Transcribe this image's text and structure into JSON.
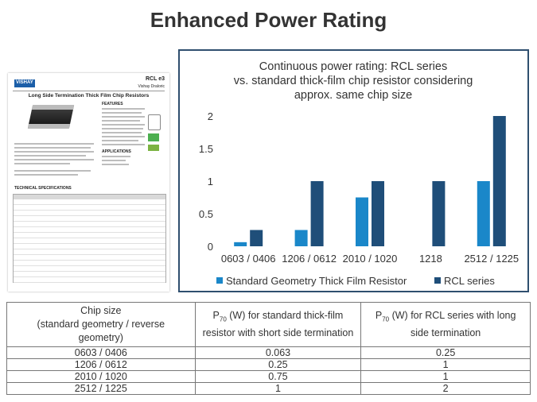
{
  "slide": {
    "title": "Enhanced Power Rating"
  },
  "thumbnail": {
    "brand": "VISHAY",
    "series": "RCL e3",
    "company": "Vishay Draloric",
    "doc_title": "Long Side Termination Thick Film Chip Resistors",
    "features_heading": "FEATURES",
    "applications_heading": "APPLICATIONS",
    "table_heading": "TECHNICAL SPECIFICATIONS"
  },
  "chart_data": {
    "type": "bar",
    "title": "Continuous power rating: RCL series vs. standard thick-film chip resistor considering approx. same chip size",
    "title_lines": [
      "Continuous power rating: RCL series",
      "vs. standard thick-film chip resistor considering",
      "approx. same chip size"
    ],
    "categories": [
      "0603 / 0406",
      "1206 / 0612",
      "2010 / 1020",
      "1218",
      "2512 / 1225"
    ],
    "series": [
      {
        "name": "Standard Geometry Thick Film Resistor",
        "color": "#1a87c9",
        "values": [
          0.063,
          0.25,
          0.75,
          null,
          1
        ]
      },
      {
        "name": "RCL series",
        "color": "#1f4e79",
        "values": [
          0.25,
          1,
          1,
          1,
          2
        ]
      }
    ],
    "ylim": [
      0,
      2
    ],
    "yticks": [
      "0",
      "0.5",
      "1",
      "1.5",
      "2"
    ],
    "grid": false,
    "legend": "bottom",
    "xlabel": "",
    "ylabel": ""
  },
  "table": {
    "headers": [
      "Chip size (standard geometry / reverse geometry)",
      "P70 (W) for standard thick-film resistor with short side termination",
      "P70 (W) for RCL series with long side termination"
    ],
    "rows": [
      [
        "0603 / 0406",
        "0.063",
        "0.25"
      ],
      [
        "1206 / 0612",
        "0.25",
        "1"
      ],
      [
        "2010 / 1020",
        "0.75",
        "1"
      ],
      [
        "2512 / 1225",
        "1",
        "2"
      ]
    ]
  }
}
